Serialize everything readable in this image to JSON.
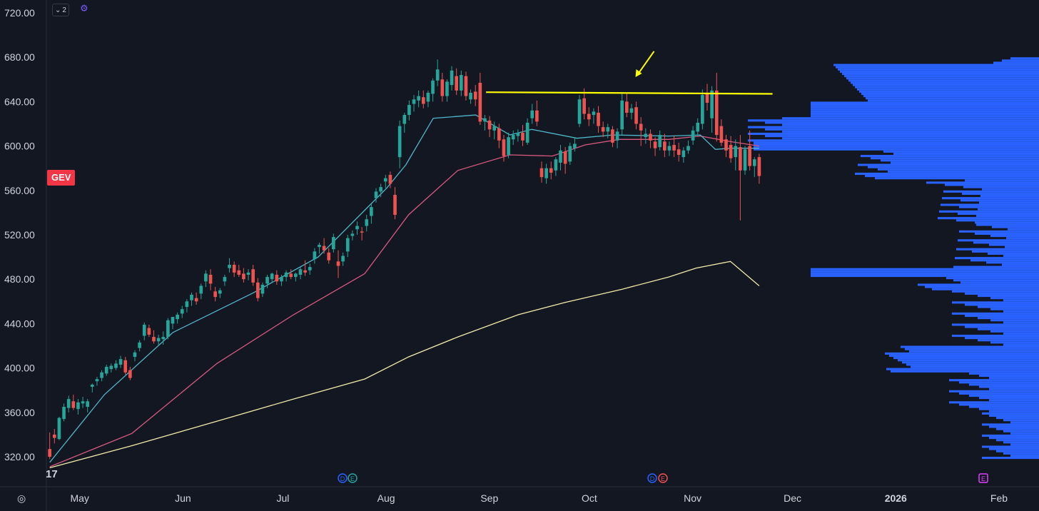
{
  "symbol": "GEV",
  "indicator_count": "2",
  "icons": {
    "collapse": "chevron-down-icon",
    "indicator": "gear-icon",
    "settings": "settings-icon",
    "logo": "tradingview-logo-icon"
  },
  "colors": {
    "background": "#131722",
    "up": "#26a69a",
    "down": "#ef5350",
    "ma_fast": "#4fb7c9",
    "ma_mid": "#d8587f",
    "ma_slow": "#f2eaa8",
    "resistance": "#ffff00",
    "volume_profile": "#2962ff",
    "badge": "#f23645"
  },
  "chart_data": {
    "type": "candlestick",
    "y_ticks": [
      "720.00",
      "680.00",
      "640.00",
      "600.00",
      "560.00",
      "520.00",
      "480.00",
      "440.00",
      "400.00",
      "360.00",
      "320.00"
    ],
    "ylim": [
      313,
      728
    ],
    "x_ticks": [
      "May",
      "Jun",
      "Jul",
      "Aug",
      "Sep",
      "Oct",
      "Nov",
      "Dec",
      "2026",
      "Feb"
    ],
    "x_tick_dates": [
      "2025-05-01",
      "2025-06-01",
      "2025-07-01",
      "2025-08-01",
      "2025-09-01",
      "2025-10-01",
      "2025-11-01",
      "2025-12-01",
      "2026-01-01",
      "2026-02-01"
    ],
    "xlim": [
      "2025-04-21",
      "2026-02-13"
    ],
    "resistance_line": {
      "start": "2025-08-31",
      "end": "2025-11-25",
      "value_start": 648.5,
      "value_end": 647
    },
    "arrow_target": {
      "date": "2025-10-14",
      "value": 666
    },
    "candles": [
      [
        "2025-04-22",
        327,
        342,
        320,
        318
      ],
      [
        "2025-04-23",
        340,
        345,
        337,
        332
      ],
      [
        "2025-04-24",
        336,
        356,
        355,
        335
      ],
      [
        "2025-04-25",
        354,
        368,
        365,
        352
      ],
      [
        "2025-04-28",
        364,
        375,
        372,
        360
      ],
      [
        "2025-04-29",
        370,
        376,
        364,
        362
      ],
      [
        "2025-04-30",
        363,
        372,
        369,
        358
      ],
      [
        "2025-05-01",
        368,
        374,
        370,
        364
      ],
      [
        "2025-05-02",
        365,
        372,
        370,
        360
      ],
      [
        "2025-05-05",
        383,
        386,
        385,
        378
      ],
      [
        "2025-05-06",
        388,
        392,
        390,
        384
      ],
      [
        "2025-05-07",
        391,
        398,
        396,
        388
      ],
      [
        "2025-05-08",
        395,
        403,
        401,
        393
      ],
      [
        "2025-05-09",
        399,
        404,
        402,
        396
      ],
      [
        "2025-05-12",
        400,
        407,
        404,
        398
      ],
      [
        "2025-05-13",
        403,
        411,
        408,
        400
      ],
      [
        "2025-05-14",
        407,
        410,
        396,
        394
      ],
      [
        "2025-05-15",
        398,
        401,
        391,
        389
      ],
      [
        "2025-05-16",
        410,
        416,
        414,
        406
      ],
      [
        "2025-05-19",
        418,
        425,
        423,
        415
      ],
      [
        "2025-05-20",
        429,
        441,
        439,
        425
      ],
      [
        "2025-05-21",
        436,
        439,
        430,
        428
      ],
      [
        "2025-05-22",
        428,
        434,
        424,
        422
      ],
      [
        "2025-05-23",
        424,
        430,
        427,
        420
      ],
      [
        "2025-05-27",
        426,
        433,
        428,
        421
      ],
      [
        "2025-05-28",
        428,
        445,
        443,
        426
      ],
      [
        "2025-05-29",
        440,
        446,
        446,
        435
      ],
      [
        "2025-05-30",
        444,
        450,
        448,
        440
      ],
      [
        "2025-06-02",
        449,
        456,
        453,
        445
      ],
      [
        "2025-06-03",
        455,
        462,
        460,
        450
      ],
      [
        "2025-06-04",
        461,
        468,
        466,
        456
      ],
      [
        "2025-06-05",
        463,
        468,
        460,
        457
      ],
      [
        "2025-06-06",
        467,
        476,
        474,
        462
      ],
      [
        "2025-06-09",
        478,
        488,
        485,
        473
      ],
      [
        "2025-06-10",
        484,
        489,
        476,
        470
      ],
      [
        "2025-06-11",
        469,
        473,
        464,
        460
      ],
      [
        "2025-06-12",
        467,
        472,
        470,
        463
      ],
      [
        "2025-06-13",
        478,
        484,
        482,
        474
      ],
      [
        "2025-06-16",
        490,
        499,
        493,
        486
      ],
      [
        "2025-06-17",
        493,
        496,
        486,
        482
      ],
      [
        "2025-06-18",
        488,
        493,
        484,
        482
      ],
      [
        "2025-06-19",
        485,
        490,
        480,
        477
      ],
      [
        "2025-06-20",
        484,
        489,
        486,
        479
      ],
      [
        "2025-06-23",
        489,
        493,
        477,
        474
      ],
      [
        "2025-06-24",
        477,
        481,
        463,
        460
      ],
      [
        "2025-06-25",
        467,
        477,
        475,
        464
      ],
      [
        "2025-06-26",
        476,
        484,
        482,
        472
      ],
      [
        "2025-06-27",
        480,
        486,
        485,
        477
      ],
      [
        "2025-06-30",
        484,
        488,
        478,
        475
      ],
      [
        "2025-07-01",
        478,
        484,
        482,
        474
      ],
      [
        "2025-07-02",
        482,
        488,
        486,
        478
      ],
      [
        "2025-07-03",
        485,
        489,
        482,
        480
      ],
      [
        "2025-07-07",
        482,
        486,
        485,
        478
      ],
      [
        "2025-07-08",
        484,
        491,
        489,
        480
      ],
      [
        "2025-07-09",
        488,
        497,
        486,
        483
      ],
      [
        "2025-07-10",
        488,
        494,
        491,
        484
      ],
      [
        "2025-07-11",
        498,
        508,
        505,
        494
      ],
      [
        "2025-07-14",
        509,
        513,
        511,
        503
      ],
      [
        "2025-07-15",
        510,
        517,
        506,
        503
      ],
      [
        "2025-07-16",
        504,
        508,
        497,
        494
      ],
      [
        "2025-07-17",
        507,
        521,
        518,
        504
      ],
      [
        "2025-07-18",
        496,
        506,
        492,
        481
      ],
      [
        "2025-07-21",
        496,
        504,
        501,
        492
      ],
      [
        "2025-07-22",
        505,
        520,
        517,
        500
      ],
      [
        "2025-07-23",
        519,
        524,
        521,
        515
      ],
      [
        "2025-07-24",
        525,
        532,
        528,
        520
      ],
      [
        "2025-07-25",
        523,
        527,
        522,
        515
      ],
      [
        "2025-07-28",
        528,
        538,
        534,
        523
      ],
      [
        "2025-07-29",
        537,
        548,
        545,
        530
      ],
      [
        "2025-07-30",
        553,
        562,
        559,
        549
      ],
      [
        "2025-07-31",
        559,
        566,
        563,
        554
      ],
      [
        "2025-08-01",
        568,
        574,
        571,
        562
      ],
      [
        "2025-08-04",
        574,
        577,
        566,
        562
      ],
      [
        "2025-08-05",
        556,
        563,
        538,
        534
      ],
      [
        "2025-08-06",
        590,
        623,
        618,
        580
      ],
      [
        "2025-08-07",
        620,
        630,
        628,
        612
      ],
      [
        "2025-08-08",
        628,
        641,
        637,
        623
      ],
      [
        "2025-08-11",
        638,
        646,
        642,
        631
      ],
      [
        "2025-08-12",
        641,
        650,
        645,
        635
      ],
      [
        "2025-08-13",
        644,
        650,
        638,
        634
      ],
      [
        "2025-08-14",
        640,
        650,
        648,
        635
      ],
      [
        "2025-08-15",
        647,
        661,
        659,
        640
      ],
      [
        "2025-08-18",
        659,
        678,
        669,
        654
      ],
      [
        "2025-08-19",
        660,
        666,
        645,
        640
      ],
      [
        "2025-08-20",
        645,
        660,
        658,
        640
      ],
      [
        "2025-08-21",
        655,
        672,
        668,
        650
      ],
      [
        "2025-08-22",
        663,
        670,
        650,
        646
      ],
      [
        "2025-08-25",
        650,
        668,
        664,
        645
      ],
      [
        "2025-08-26",
        663,
        667,
        645,
        641
      ],
      [
        "2025-08-27",
        642,
        651,
        648,
        638
      ],
      [
        "2025-08-28",
        649,
        655,
        642,
        636
      ],
      [
        "2025-08-29",
        657,
        666,
        622,
        619
      ],
      [
        "2025-09-02",
        622,
        628,
        625,
        614
      ],
      [
        "2025-09-03",
        623,
        627,
        615,
        608
      ],
      [
        "2025-09-04",
        614,
        622,
        618,
        606
      ],
      [
        "2025-09-05",
        616,
        620,
        605,
        598
      ],
      [
        "2025-09-08",
        606,
        610,
        591,
        586
      ],
      [
        "2025-09-09",
        592,
        612,
        608,
        589
      ],
      [
        "2025-09-10",
        606,
        614,
        610,
        601
      ],
      [
        "2025-09-11",
        609,
        615,
        612,
        604
      ],
      [
        "2025-09-12",
        612,
        619,
        605,
        600
      ],
      [
        "2025-09-15",
        603,
        625,
        621,
        601
      ],
      [
        "2025-09-16",
        625,
        638,
        632,
        620
      ],
      [
        "2025-09-17",
        632,
        641,
        622,
        618
      ],
      [
        "2025-09-18",
        580,
        586,
        572,
        567
      ],
      [
        "2025-09-19",
        571,
        584,
        580,
        566
      ],
      [
        "2025-09-22",
        580,
        586,
        576,
        570
      ],
      [
        "2025-09-23",
        578,
        590,
        588,
        573
      ],
      [
        "2025-09-24",
        585,
        601,
        596,
        578
      ],
      [
        "2025-09-25",
        595,
        599,
        584,
        575
      ],
      [
        "2025-09-26",
        586,
        603,
        600,
        583
      ],
      [
        "2025-09-29",
        598,
        607,
        602,
        595
      ],
      [
        "2025-09-30",
        620,
        646,
        642,
        617
      ],
      [
        "2025-10-01",
        643,
        652,
        629,
        624
      ],
      [
        "2025-10-02",
        629,
        635,
        624,
        618
      ],
      [
        "2025-10-03",
        628,
        634,
        631,
        620
      ],
      [
        "2025-10-06",
        630,
        636,
        618,
        612
      ],
      [
        "2025-10-07",
        617,
        622,
        613,
        608
      ],
      [
        "2025-10-08",
        613,
        620,
        617,
        607
      ],
      [
        "2025-10-09",
        615,
        618,
        603,
        599
      ],
      [
        "2025-10-10",
        605,
        616,
        613,
        598
      ],
      [
        "2025-10-13",
        615,
        647,
        641,
        610
      ],
      [
        "2025-10-14",
        640,
        648,
        630,
        626
      ],
      [
        "2025-10-15",
        630,
        638,
        634,
        624
      ],
      [
        "2025-10-16",
        635,
        640,
        620,
        615
      ],
      [
        "2025-10-17",
        620,
        626,
        614,
        600
      ],
      [
        "2025-10-20",
        608,
        616,
        611,
        602
      ],
      [
        "2025-10-21",
        611,
        615,
        605,
        598
      ],
      [
        "2025-10-22",
        604,
        608,
        598,
        591
      ],
      [
        "2025-10-23",
        599,
        614,
        610,
        596
      ],
      [
        "2025-10-24",
        604,
        611,
        596,
        590
      ],
      [
        "2025-10-27",
        596,
        604,
        600,
        591
      ],
      [
        "2025-10-28",
        601,
        609,
        596,
        590
      ],
      [
        "2025-10-29",
        597,
        603,
        592,
        586
      ],
      [
        "2025-10-30",
        590,
        599,
        596,
        585
      ],
      [
        "2025-10-31",
        596,
        605,
        600,
        593
      ],
      [
        "2025-11-03",
        605,
        618,
        614,
        601
      ],
      [
        "2025-11-04",
        613,
        625,
        621,
        609
      ],
      [
        "2025-11-05",
        620,
        651,
        646,
        615
      ],
      [
        "2025-11-06",
        648,
        656,
        639,
        632
      ],
      [
        "2025-11-07",
        625,
        654,
        650,
        612
      ],
      [
        "2025-11-10",
        650,
        666,
        610,
        604
      ],
      [
        "2025-11-11",
        618,
        624,
        603,
        600
      ],
      [
        "2025-11-12",
        606,
        610,
        596,
        590
      ],
      [
        "2025-11-13",
        601,
        609,
        589,
        585
      ],
      [
        "2025-11-14",
        590,
        606,
        600,
        578
      ],
      [
        "2025-11-17",
        599,
        610,
        578,
        533
      ],
      [
        "2025-11-18",
        578,
        600,
        597,
        574
      ],
      [
        "2025-11-19",
        600,
        614,
        582,
        578
      ],
      [
        "2025-11-20",
        582,
        590,
        588,
        572
      ],
      [
        "2025-11-21",
        590,
        593,
        573,
        566
      ]
    ],
    "ma_fast": [
      [
        0,
        315
      ],
      [
        40,
        376
      ],
      [
        90,
        432
      ],
      [
        149,
        468
      ],
      [
        196,
        500
      ],
      [
        246,
        562
      ],
      [
        260,
        583
      ],
      [
        280,
        625
      ],
      [
        311,
        628
      ],
      [
        336,
        610
      ],
      [
        352,
        615
      ],
      [
        385,
        607
      ],
      [
        411,
        610
      ],
      [
        452,
        609
      ],
      [
        475,
        610
      ],
      [
        486,
        597
      ],
      [
        497,
        598
      ],
      [
        518,
        598
      ]
    ],
    "ma_mid": [
      [
        0,
        311
      ],
      [
        60,
        341
      ],
      [
        122,
        404
      ],
      [
        178,
        448
      ],
      [
        230,
        485
      ],
      [
        262,
        538
      ],
      [
        298,
        578
      ],
      [
        336,
        592
      ],
      [
        367,
        591
      ],
      [
        391,
        601
      ],
      [
        416,
        606
      ],
      [
        436,
        606
      ],
      [
        452,
        606
      ],
      [
        475,
        609
      ],
      [
        497,
        604
      ],
      [
        518,
        600
      ]
    ],
    "ma_slow": [
      [
        0,
        310
      ],
      [
        60,
        330
      ],
      [
        122,
        352
      ],
      [
        178,
        372
      ],
      [
        230,
        390
      ],
      [
        262,
        410
      ],
      [
        298,
        428
      ],
      [
        342,
        448
      ],
      [
        376,
        459
      ],
      [
        418,
        471
      ],
      [
        452,
        482
      ],
      [
        472,
        490
      ],
      [
        497,
        496
      ],
      [
        518,
        474
      ]
    ],
    "volume_profile": [
      [
        644,
        720,
        6,
        48
      ],
      [
        654,
        717,
        12,
        46
      ],
      [
        636,
        710,
        13,
        56
      ],
      [
        636,
        709,
        14,
        54
      ],
      [
        645,
        706,
        16,
        50
      ],
      [
        653,
        697,
        18,
        48
      ],
      [
        653,
        696,
        22,
        50
      ],
      [
        642,
        690,
        24,
        48
      ],
      [
        637,
        682,
        26,
        42
      ],
      [
        622,
        676,
        28,
        44
      ],
      [
        610,
        669,
        30,
        58
      ],
      [
        604,
        658,
        32,
        56
      ],
      [
        599,
        652,
        34,
        46
      ],
      [
        592,
        646,
        36,
        40
      ],
      [
        586,
        638,
        38,
        44
      ],
      [
        578,
        628,
        40,
        48
      ],
      [
        573,
        618,
        42,
        52
      ],
      [
        566,
        608,
        44,
        38
      ],
      [
        557,
        598,
        46,
        44
      ],
      [
        548,
        590,
        48,
        48
      ],
      [
        540,
        586,
        50,
        54
      ],
      [
        531,
        581,
        52,
        60
      ],
      [
        520,
        574,
        54,
        48
      ],
      [
        509,
        572,
        56,
        56
      ],
      [
        497,
        572,
        60,
        48
      ],
      [
        483,
        568,
        62,
        46
      ],
      [
        471,
        562,
        64,
        44
      ],
      [
        461,
        560,
        66,
        40
      ],
      [
        452,
        555,
        68,
        44
      ],
      [
        444,
        550,
        70,
        48
      ],
      [
        434,
        540,
        72,
        52
      ],
      [
        423,
        535,
        74,
        44
      ],
      [
        413,
        528,
        76,
        46
      ],
      [
        404,
        520,
        78,
        50
      ],
      [
        396,
        518,
        80,
        54
      ],
      [
        386,
        508,
        82,
        44
      ],
      [
        376,
        500,
        84,
        48
      ],
      [
        364,
        489,
        86,
        42
      ],
      [
        352,
        478,
        88,
        38
      ],
      [
        343,
        471,
        90,
        40
      ]
    ]
  }
}
